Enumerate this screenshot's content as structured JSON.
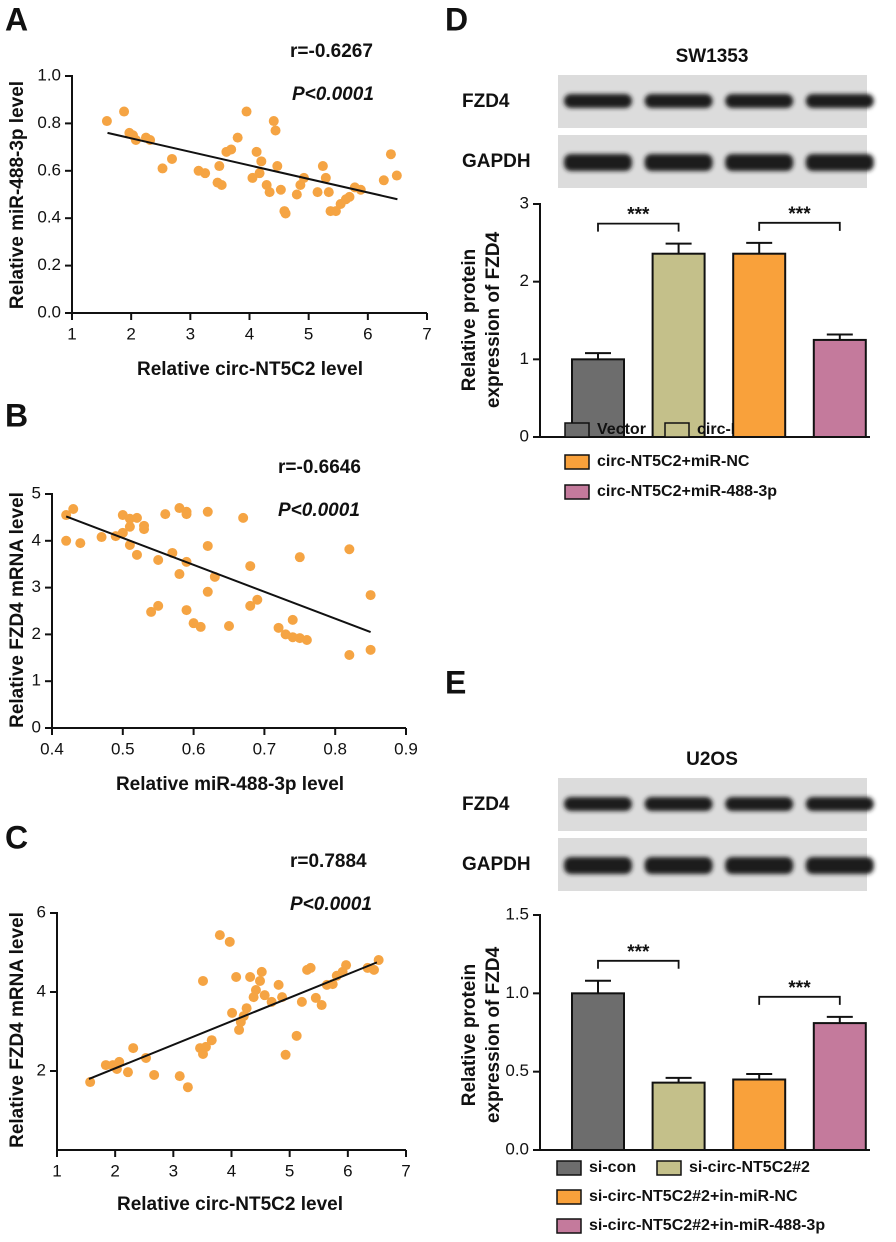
{
  "chart_data": [
    {
      "type": "scatter",
      "panel": "A",
      "xlabel": "Relative circ-NT5C2 level",
      "ylabel": "Relative miR-488-3p level",
      "annotations": [
        "r=-0.6267",
        "P<0.0001"
      ],
      "color": "#f5a443",
      "x": [
        1.59,
        1.88,
        1.97,
        2.03,
        2.08,
        2.25,
        2.32,
        2.53,
        2.69,
        3.14,
        3.25,
        3.46,
        3.49,
        3.53,
        3.61,
        3.69,
        3.8,
        3.95,
        4.05,
        4.12,
        4.17,
        4.2,
        4.29,
        4.34,
        4.41,
        4.44,
        4.47,
        4.53,
        4.59,
        4.61,
        4.8,
        4.86,
        4.92,
        5.15,
        5.24,
        5.29,
        5.34,
        5.37,
        5.46,
        5.54,
        5.63,
        5.69,
        5.78,
        5.88,
        6.27,
        6.39,
        6.49
      ],
      "y": [
        0.81,
        0.85,
        0.76,
        0.75,
        0.73,
        0.74,
        0.73,
        0.61,
        0.65,
        0.6,
        0.59,
        0.55,
        0.62,
        0.54,
        0.68,
        0.69,
        0.74,
        0.85,
        0.57,
        0.68,
        0.59,
        0.64,
        0.54,
        0.51,
        0.81,
        0.77,
        0.62,
        0.52,
        0.43,
        0.42,
        0.5,
        0.54,
        0.57,
        0.51,
        0.62,
        0.57,
        0.51,
        0.43,
        0.43,
        0.46,
        0.48,
        0.49,
        0.53,
        0.52,
        0.56,
        0.67,
        0.58
      ],
      "fit": {
        "x": [
          1.6,
          6.5
        ],
        "y": [
          0.76,
          0.48
        ]
      },
      "xlim": [
        1,
        7
      ],
      "ylim": [
        0,
        1
      ],
      "xticks": [
        1,
        2,
        3,
        4,
        5,
        6,
        7
      ],
      "yticks": [
        {
          "value": 0,
          "label": "0.0"
        },
        0.2,
        0.4,
        0.6,
        0.8,
        {
          "value": 1,
          "label": "1.0"
        }
      ]
    },
    {
      "type": "scatter",
      "panel": "B",
      "xlabel": "Relative miR-488-3p level",
      "ylabel": "Relative FZD4 mRNA level",
      "annotations": [
        "r=-0.6646",
        "P<0.0001"
      ],
      "color": "#f5a443",
      "x": [
        0.42,
        0.42,
        0.43,
        0.44,
        0.47,
        0.49,
        0.5,
        0.5,
        0.51,
        0.51,
        0.51,
        0.52,
        0.52,
        0.53,
        0.53,
        0.54,
        0.55,
        0.55,
        0.56,
        0.57,
        0.58,
        0.58,
        0.59,
        0.59,
        0.59,
        0.59,
        0.6,
        0.61,
        0.62,
        0.62,
        0.62,
        0.63,
        0.65,
        0.67,
        0.68,
        0.68,
        0.69,
        0.72,
        0.73,
        0.74,
        0.74,
        0.75,
        0.75,
        0.76,
        0.82,
        0.82,
        0.85,
        0.85
      ],
      "y": [
        4.55,
        4.0,
        4.68,
        3.95,
        4.08,
        4.1,
        4.17,
        4.55,
        3.91,
        4.47,
        4.3,
        4.49,
        3.7,
        4.32,
        4.25,
        2.48,
        3.59,
        2.61,
        4.57,
        3.74,
        4.7,
        3.29,
        4.62,
        2.52,
        4.57,
        3.55,
        2.24,
        2.16,
        3.89,
        4.62,
        2.91,
        3.23,
        2.18,
        4.49,
        3.46,
        2.61,
        2.74,
        2.14,
        2.0,
        2.31,
        1.94,
        1.92,
        3.65,
        1.88,
        3.82,
        1.56,
        2.84,
        1.67
      ],
      "fit": {
        "x": [
          0.42,
          0.85
        ],
        "y": [
          4.52,
          2.05
        ]
      },
      "xlim": [
        0.4,
        0.9
      ],
      "ylim": [
        0,
        5
      ],
      "xticks": [
        0.4,
        0.5,
        0.6,
        0.7,
        0.8,
        0.9
      ],
      "yticks": [
        0,
        1,
        2,
        3,
        4,
        5
      ]
    },
    {
      "type": "scatter",
      "panel": "C",
      "xlabel": "Relative circ-NT5C2 level",
      "ylabel": "Relative FZD4 mRNA level",
      "annotations": [
        "r=0.7884",
        "P<0.0001"
      ],
      "color": "#f5a443",
      "x": [
        1.57,
        1.84,
        1.96,
        2.03,
        2.07,
        2.22,
        2.31,
        2.53,
        2.67,
        3.11,
        3.25,
        3.46,
        3.51,
        3.56,
        3.66,
        3.51,
        3.8,
        3.97,
        4.01,
        4.08,
        4.13,
        4.16,
        4.21,
        4.26,
        4.32,
        4.38,
        4.42,
        4.49,
        4.52,
        4.57,
        4.69,
        4.81,
        4.87,
        4.93,
        5.12,
        5.21,
        5.3,
        5.36,
        5.45,
        5.55,
        5.64,
        5.74,
        5.81,
        5.91,
        5.97,
        6.34,
        6.45,
        6.53
      ],
      "y": [
        1.72,
        2.15,
        2.15,
        2.05,
        2.23,
        1.97,
        2.58,
        2.33,
        1.9,
        1.87,
        1.59,
        2.58,
        2.43,
        2.61,
        2.78,
        4.28,
        5.44,
        5.27,
        3.47,
        4.38,
        3.04,
        3.24,
        3.39,
        3.59,
        4.38,
        3.87,
        4.05,
        4.28,
        4.51,
        3.92,
        3.75,
        4.18,
        3.87,
        2.41,
        2.89,
        3.75,
        4.56,
        4.61,
        3.85,
        3.67,
        4.18,
        4.2,
        4.41,
        4.51,
        4.68,
        4.61,
        4.56,
        4.81
      ],
      "fit": {
        "x": [
          1.55,
          6.5
        ],
        "y": [
          1.8,
          4.75
        ]
      },
      "xlim": [
        1,
        7
      ],
      "ylim": [
        0,
        6
      ],
      "xticks": [
        1,
        2,
        3,
        4,
        5,
        6,
        7
      ],
      "yticks": [
        2,
        4,
        6
      ]
    },
    {
      "type": "bar",
      "panel": "D",
      "title": "SW1353",
      "blot_labels": [
        "FZD4",
        "GAPDH"
      ],
      "ylabel": [
        "Relative protein",
        "expression of FZD4"
      ],
      "categories": [
        "Vector",
        "circ-NT5C2",
        "circ-NT5C2+miR-NC",
        "circ-NT5C2+miR-488-3p"
      ],
      "values": [
        1.0,
        2.36,
        2.36,
        1.25
      ],
      "errors": [
        0.08,
        0.13,
        0.14,
        0.07
      ],
      "colors": [
        "#6d6d6d",
        "#c4c08a",
        "#f9a13b",
        "#c47a9c"
      ],
      "significance": [
        {
          "from": "Vector",
          "to": "circ-NT5C2",
          "label": "***"
        },
        {
          "from": "circ-NT5C2+miR-NC",
          "to": "circ-NT5C2+miR-488-3p",
          "label": "***"
        }
      ],
      "ylim": [
        0,
        3
      ],
      "yticks": [
        0,
        1,
        2,
        3
      ]
    },
    {
      "type": "bar",
      "panel": "E",
      "title": "U2OS",
      "blot_labels": [
        "FZD4",
        "GAPDH"
      ],
      "ylabel": [
        "Relative protein",
        "expression of FZD4"
      ],
      "categories": [
        "si-con",
        "si-circ-NT5C2#2",
        "si-circ-NT5C2#2+in-miR-NC",
        "si-circ-NT5C2#2+in-miR-488-3p"
      ],
      "values": [
        1.0,
        0.43,
        0.45,
        0.81
      ],
      "errors": [
        0.08,
        0.03,
        0.035,
        0.04
      ],
      "colors": [
        "#6d6d6d",
        "#c4c08a",
        "#f9a13b",
        "#c47a9c"
      ],
      "significance": [
        {
          "from": "si-con",
          "to": "si-circ-NT5C2#2",
          "label": "***"
        },
        {
          "from": "si-circ-NT5C2#2+in-miR-NC",
          "to": "si-circ-NT5C2#2+in-miR-488-3p",
          "label": "***"
        }
      ],
      "ylim": [
        0,
        1.5
      ],
      "yticks": [
        {
          "value": 0,
          "label": "0.0"
        },
        0.5,
        {
          "value": 1,
          "label": "1.0"
        },
        1.5
      ]
    }
  ]
}
